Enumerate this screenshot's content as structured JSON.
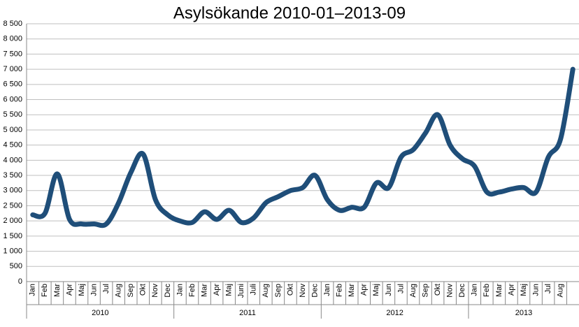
{
  "chart_data": {
    "type": "line",
    "title": "Asylsökande 2010-01–2013-09",
    "categories": [
      "Jan",
      "Feb",
      "Mar",
      "Apr",
      "Maj",
      "Jun",
      "Jul",
      "Aug",
      "Sep",
      "Okt",
      "Nov",
      "Dec",
      "Jan",
      "Feb",
      "Mar",
      "Apr",
      "Maj",
      "Juni",
      "Juli",
      "Aug",
      "Sep",
      "Okt",
      "Nov",
      "Dec",
      "Jan",
      "Feb",
      "Mar",
      "Apr",
      "Maj",
      "Jun",
      "Jul",
      "Aug",
      "Sep",
      "Okt",
      "Nov",
      "Dec",
      "Jan",
      "Feb",
      "Mar",
      "Apr",
      "Maj",
      "Jun",
      "Jul",
      "Aug",
      null
    ],
    "category_groups": [
      "2010",
      "2011",
      "2012",
      "2013"
    ],
    "series": [
      {
        "color": "#1f4e79",
        "values": [
          2200,
          2250,
          3550,
          2050,
          1900,
          1900,
          1900,
          2600,
          3600,
          4200,
          2700,
          2200,
          2000,
          1950,
          2300,
          2050,
          2350,
          1950,
          2100,
          2600,
          2800,
          3000,
          3100,
          3500,
          2700,
          2350,
          2450,
          2450,
          3250,
          3100,
          4100,
          4350,
          4900,
          5500,
          4500,
          4050,
          3800,
          2950,
          2950,
          3050,
          3100,
          2950,
          4100,
          4700,
          7000
        ]
      }
    ],
    "ylim": [
      0,
      8500
    ],
    "yticks": [
      0,
      500,
      {
        "value": 1000,
        "label": "1 000"
      },
      {
        "value": 1500,
        "label": "1 500"
      },
      {
        "value": 2000,
        "label": "2 000"
      },
      {
        "value": 2500,
        "label": "2 500"
      },
      {
        "value": 3000,
        "label": "3 000"
      },
      {
        "value": 3500,
        "label": "3 500"
      },
      {
        "value": 4000,
        "label": "4 000"
      },
      {
        "value": 4500,
        "label": "4 500"
      },
      {
        "value": 5000,
        "label": "5 000"
      },
      {
        "value": 5500,
        "label": "5 500"
      },
      {
        "value": 6000,
        "label": "6 000"
      },
      {
        "value": 6500,
        "label": "6 500"
      },
      {
        "value": 7000,
        "label": "7 000"
      },
      {
        "value": 7500,
        "label": "7 500"
      },
      {
        "value": 8000,
        "label": "8 000"
      },
      {
        "value": 8500,
        "label": "8 500"
      }
    ],
    "grid": true
  }
}
